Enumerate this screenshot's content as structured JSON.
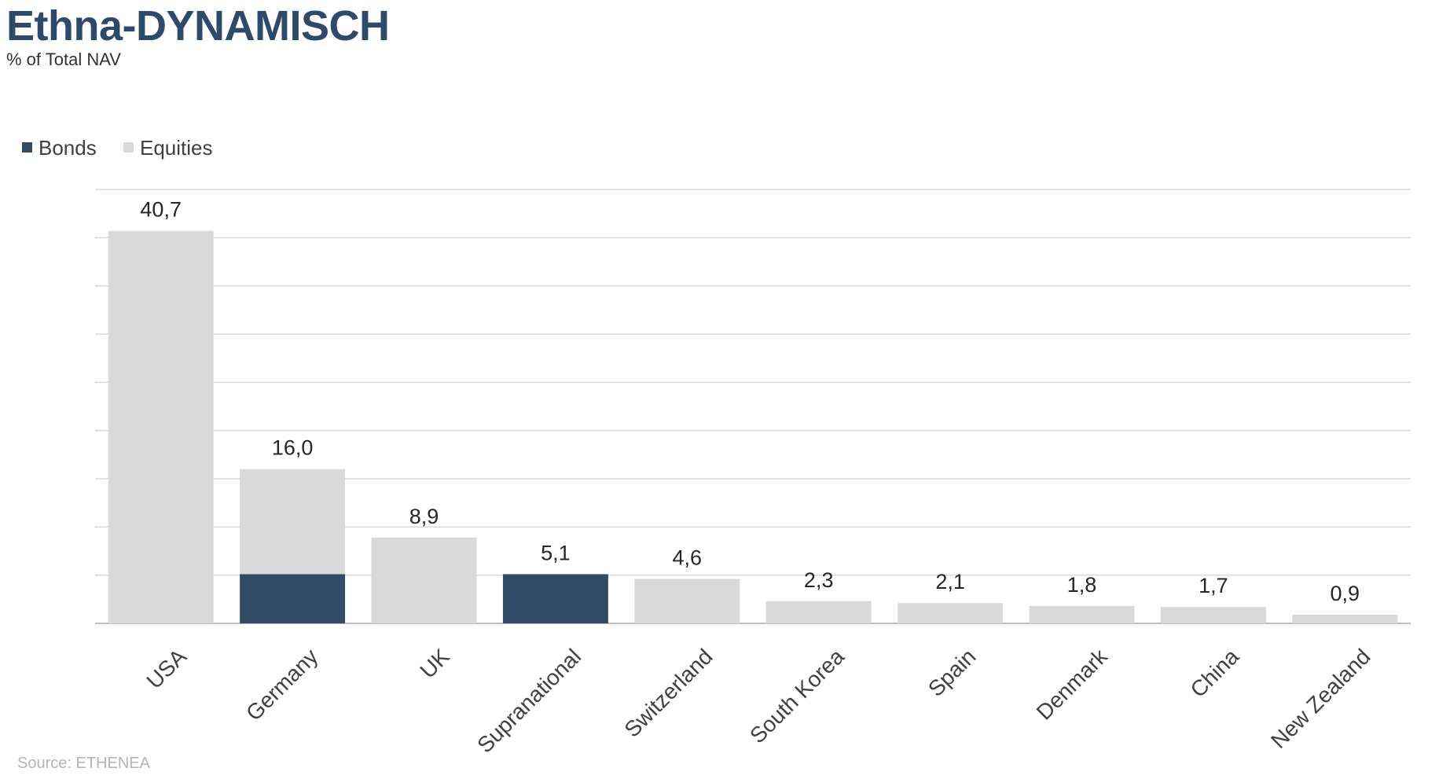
{
  "header": {
    "title": "Ethna-DYNAMISCH",
    "subtitle": "% of Total NAV"
  },
  "footer": {
    "source": "Source: ETHENEA"
  },
  "colors": {
    "bonds": "#314a68",
    "equities": "#d9d9d9",
    "grid": "#d9d9d9"
  },
  "chart_data": {
    "type": "bar",
    "stacked": true,
    "categories": [
      "USA",
      "Germany",
      "UK",
      "Supranational",
      "Switzerland",
      "South Korea",
      "Spain",
      "Denmark",
      "China",
      "New Zealand"
    ],
    "series": [
      {
        "name": "Bonds",
        "values": [
          0,
          5.1,
          0,
          5.1,
          0,
          0,
          0,
          0,
          0,
          0
        ]
      },
      {
        "name": "Equities",
        "values": [
          40.7,
          10.9,
          8.9,
          0,
          4.6,
          2.3,
          2.1,
          1.8,
          1.7,
          0.9
        ]
      }
    ],
    "totals": [
      "40,7",
      "16,0",
      "8,9",
      "5,1",
      "4,6",
      "2,3",
      "2,1",
      "1,8",
      "1,7",
      "0,9"
    ],
    "ylim": [
      0,
      45
    ],
    "grid": true,
    "legend_position": "top-left"
  }
}
